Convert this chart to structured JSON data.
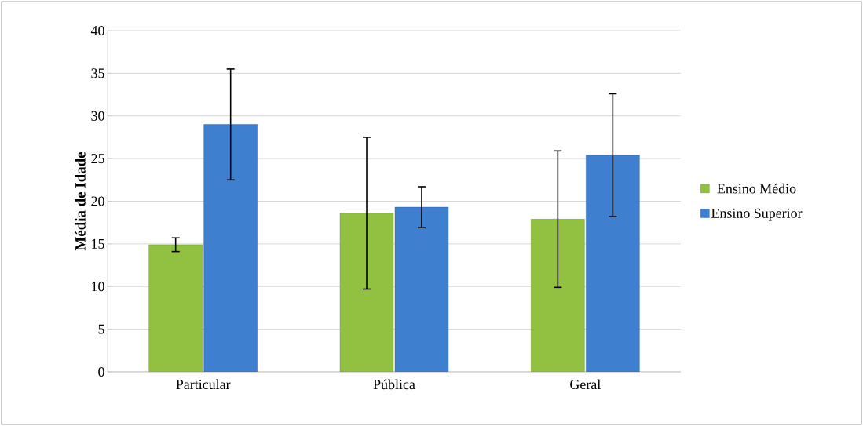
{
  "chart_data": {
    "type": "bar",
    "ylabel": "Média de Idade",
    "categories": [
      "Particular",
      "Pública",
      "Geral"
    ],
    "series": [
      {
        "name": "Ensino Médio",
        "color": "#92c142",
        "values": [
          14.9,
          18.6,
          17.9
        ],
        "errors": [
          0.8,
          8.9,
          8.0
        ]
      },
      {
        "name": "Ensino Superior",
        "color": "#3f7fcf",
        "values": [
          29.0,
          19.3,
          25.4
        ],
        "errors": [
          6.5,
          2.4,
          7.2
        ]
      }
    ],
    "ylim": [
      0,
      40
    ],
    "yticks": [
      0,
      5,
      10,
      15,
      20,
      25,
      30,
      35,
      40
    ],
    "grid": "y",
    "legend": "right"
  }
}
